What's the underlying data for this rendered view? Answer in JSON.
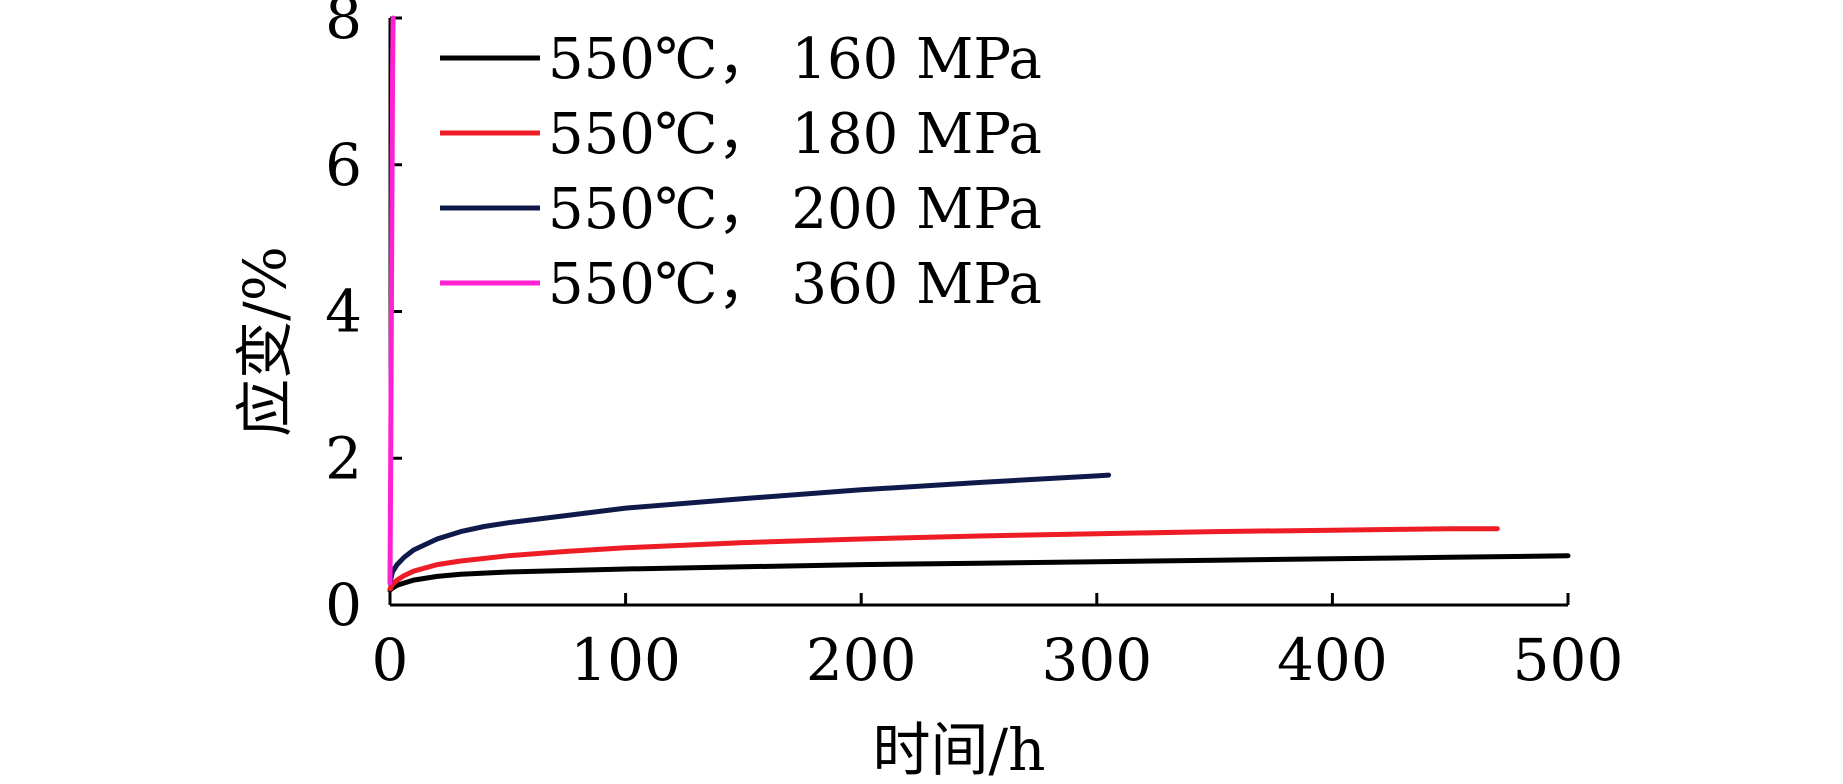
{
  "chart_data": {
    "type": "line",
    "title": "",
    "xlabel": "时间/h",
    "ylabel": "应变/%",
    "xlim": [
      0,
      500
    ],
    "ylim": [
      0,
      8
    ],
    "xticks": [
      "0",
      "100",
      "200",
      "300",
      "400",
      "500"
    ],
    "yticks": [
      "0",
      "2",
      "4",
      "6",
      "8"
    ],
    "grid": false,
    "legend_position": "top-left",
    "series": [
      {
        "name": "550℃， 160 MPa",
        "color": "#000000",
        "x": [
          0,
          1,
          3,
          6,
          10,
          20,
          30,
          50,
          75,
          100,
          150,
          200,
          250,
          300,
          350,
          400,
          450,
          500
        ],
        "y": [
          0.2,
          0.23,
          0.27,
          0.3,
          0.34,
          0.39,
          0.42,
          0.45,
          0.47,
          0.49,
          0.52,
          0.55,
          0.57,
          0.59,
          0.61,
          0.63,
          0.65,
          0.67
        ]
      },
      {
        "name": "550℃， 180 MPa",
        "color": "#ee1c25",
        "x": [
          0,
          1,
          3,
          6,
          10,
          20,
          30,
          50,
          75,
          100,
          150,
          200,
          250,
          300,
          350,
          400,
          450,
          470
        ],
        "y": [
          0.22,
          0.28,
          0.34,
          0.4,
          0.46,
          0.55,
          0.6,
          0.67,
          0.73,
          0.78,
          0.85,
          0.9,
          0.94,
          0.97,
          1.0,
          1.02,
          1.04,
          1.04
        ]
      },
      {
        "name": "550℃， 200 MPa",
        "color": "#101a4a",
        "x": [
          0,
          1,
          3,
          6,
          10,
          20,
          30,
          40,
          50,
          75,
          100,
          150,
          200,
          250,
          300,
          305
        ],
        "y": [
          0.3,
          0.45,
          0.55,
          0.65,
          0.75,
          0.9,
          1.0,
          1.07,
          1.12,
          1.22,
          1.32,
          1.45,
          1.57,
          1.67,
          1.76,
          1.77
        ]
      },
      {
        "name": "550℃， 360 MPa",
        "color": "#ff21d4",
        "x": [
          0,
          0.3,
          0.6,
          0.9,
          1.1,
          1.3
        ],
        "y": [
          0.3,
          2.0,
          4.0,
          6.0,
          7.3,
          8.0
        ]
      }
    ]
  }
}
